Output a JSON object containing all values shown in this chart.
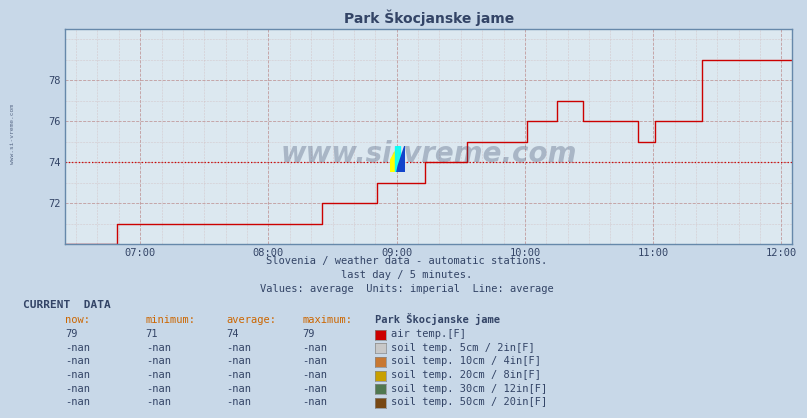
{
  "title": "Park Škocjanske jame",
  "bg_color": "#c8d8e8",
  "plot_bg_color": "#dce8f0",
  "line_color": "#cc0000",
  "avg_line_color": "#cc0000",
  "avg_value": 74,
  "xmin": 6.417,
  "xmax": 12.083,
  "ymin": 70.0,
  "ymax": 80.5,
  "yticks": [
    72,
    74,
    76,
    78
  ],
  "xtick_positions": [
    7.0,
    8.0,
    9.0,
    10.0,
    11.0,
    12.0
  ],
  "xtick_labels": [
    "07:00",
    "08:00",
    "09:00",
    "10:00",
    "11:00",
    "12:00"
  ],
  "watermark": "www.si-vreme.com",
  "subtitle1": "Slovenia / weather data - automatic stations.",
  "subtitle2": "last day / 5 minutes.",
  "subtitle3": "Values: average  Units: imperial  Line: average",
  "left_label": "www.si-vreme.com",
  "grid_color": "#bb8888",
  "minor_grid_color": "#ccaaaa",
  "current_data_headers": [
    "now:",
    "minimum:",
    "average:",
    "maximum:",
    "Park Škocjanske jame"
  ],
  "current_data_rows": [
    {
      "now": "79",
      "min": "71",
      "avg": "74",
      "max": "79",
      "color": "#cc0000",
      "label": "air temp.[F]"
    },
    {
      "now": "-nan",
      "min": "-nan",
      "avg": "-nan",
      "max": "-nan",
      "color": "#c8c8c8",
      "label": "soil temp. 5cm / 2in[F]"
    },
    {
      "now": "-nan",
      "min": "-nan",
      "avg": "-nan",
      "max": "-nan",
      "color": "#c87832",
      "label": "soil temp. 10cm / 4in[F]"
    },
    {
      "now": "-nan",
      "min": "-nan",
      "avg": "-nan",
      "max": "-nan",
      "color": "#c8a000",
      "label": "soil temp. 20cm / 8in[F]"
    },
    {
      "now": "-nan",
      "min": "-nan",
      "avg": "-nan",
      "max": "-nan",
      "color": "#507850",
      "label": "soil temp. 30cm / 12in[F]"
    },
    {
      "now": "-nan",
      "min": "-nan",
      "avg": "-nan",
      "max": "-nan",
      "color": "#784814",
      "label": "soil temp. 50cm / 20in[F]"
    }
  ],
  "time_data": [
    6.417,
    6.45,
    6.483,
    6.517,
    6.55,
    6.583,
    6.617,
    6.65,
    6.683,
    6.717,
    6.75,
    6.783,
    6.817,
    6.85,
    6.883,
    6.917,
    6.95,
    6.983,
    7.017,
    7.05,
    7.083,
    7.117,
    7.15,
    7.183,
    7.217,
    7.25,
    7.283,
    7.317,
    7.35,
    7.383,
    7.417,
    7.45,
    7.483,
    7.517,
    7.55,
    7.583,
    7.617,
    7.65,
    7.683,
    7.717,
    7.75,
    7.783,
    7.817,
    7.85,
    7.883,
    7.917,
    7.95,
    7.983,
    8.017,
    8.05,
    8.083,
    8.117,
    8.15,
    8.183,
    8.217,
    8.25,
    8.283,
    8.317,
    8.35,
    8.383,
    8.417,
    8.45,
    8.483,
    8.517,
    8.55,
    8.583,
    8.617,
    8.65,
    8.683,
    8.717,
    8.75,
    8.783,
    8.817,
    8.85,
    8.883,
    8.917,
    8.95,
    8.983,
    9.017,
    9.05,
    9.083,
    9.117,
    9.15,
    9.183,
    9.217,
    9.25,
    9.283,
    9.317,
    9.35,
    9.383,
    9.417,
    9.45,
    9.483,
    9.517,
    9.55,
    9.583,
    9.617,
    9.65,
    9.683,
    9.717,
    9.75,
    9.783,
    9.817,
    9.85,
    9.883,
    9.917,
    9.95,
    9.983,
    10.017,
    10.05,
    10.083,
    10.117,
    10.15,
    10.183,
    10.217,
    10.25,
    10.283,
    10.317,
    10.35,
    10.383,
    10.417,
    10.45,
    10.483,
    10.517,
    10.55,
    10.583,
    10.617,
    10.65,
    10.683,
    10.717,
    10.75,
    10.783,
    10.817,
    10.85,
    10.883,
    10.917,
    10.95,
    10.983,
    11.017,
    11.05,
    11.083,
    11.117,
    11.15,
    11.183,
    11.217,
    11.25,
    11.283,
    11.317,
    11.35,
    11.383,
    11.417,
    11.45,
    11.483,
    11.517,
    11.55,
    11.583,
    11.617,
    11.65,
    11.683,
    11.717,
    11.75,
    11.783,
    11.817,
    11.85,
    11.883,
    11.917,
    11.95,
    11.983,
    12.017,
    12.05,
    12.083
  ],
  "temp_data": [
    70,
    70,
    70,
    70,
    70,
    70,
    70,
    70,
    70,
    70,
    70,
    70,
    71,
    71,
    71,
    71,
    71,
    71,
    71,
    71,
    71,
    71,
    71,
    71,
    71,
    71,
    71,
    71,
    71,
    71,
    71,
    71,
    71,
    71,
    71,
    71,
    71,
    71,
    71,
    71,
    71,
    71,
    71,
    71,
    71,
    71,
    71,
    71,
    71,
    71,
    71,
    71,
    71,
    71,
    71,
    71,
    71,
    71,
    71,
    71,
    72,
    72,
    72,
    72,
    72,
    72,
    72,
    72,
    72,
    72,
    72,
    72,
    72,
    73,
    73,
    73,
    73,
    73,
    73,
    73,
    73,
    73,
    73,
    73,
    74,
    74,
    74,
    74,
    74,
    74,
    74,
    74,
    74,
    74,
    75,
    75,
    75,
    75,
    75,
    75,
    75,
    75,
    75,
    75,
    75,
    75,
    75,
    75,
    76,
    76,
    76,
    76,
    76,
    76,
    76,
    77,
    77,
    77,
    77,
    77,
    77,
    76,
    76,
    76,
    76,
    76,
    76,
    76,
    76,
    76,
    76,
    76,
    76,
    76,
    75,
    75,
    75,
    75,
    76,
    76,
    76,
    76,
    76,
    76,
    76,
    76,
    76,
    76,
    76,
    79,
    79,
    79,
    79,
    79,
    79,
    79,
    79,
    79,
    79,
    79,
    79,
    79,
    79,
    79,
    79,
    79,
    79,
    79,
    79,
    79,
    79
  ]
}
